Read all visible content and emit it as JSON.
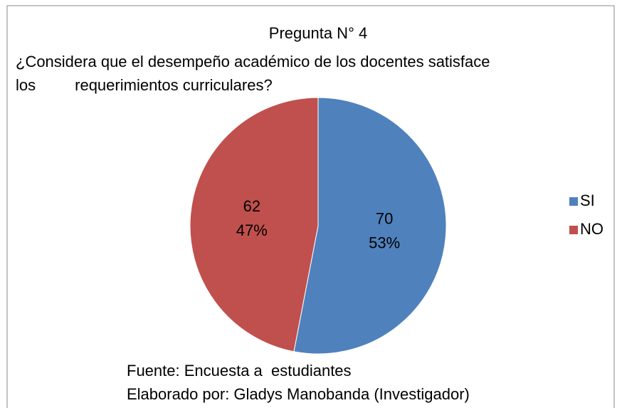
{
  "chart_data": {
    "type": "pie",
    "title": "Pregunta N° 4",
    "subtitle_lines": [
      "¿Considera que el desempeño académico de los docentes satisface",
      "los         requerimientos curriculares?"
    ],
    "categories": [
      "SI",
      "NO"
    ],
    "values": [
      70,
      62
    ],
    "percent_labels": [
      "53%",
      "47%"
    ],
    "colors": [
      "#4f81bd",
      "#c0504d"
    ],
    "legend": "right",
    "notes": [
      "Fuente: Encuesta a  estudiantes",
      "Elaborado por: Gladys Manobanda (Investigador)"
    ]
  }
}
